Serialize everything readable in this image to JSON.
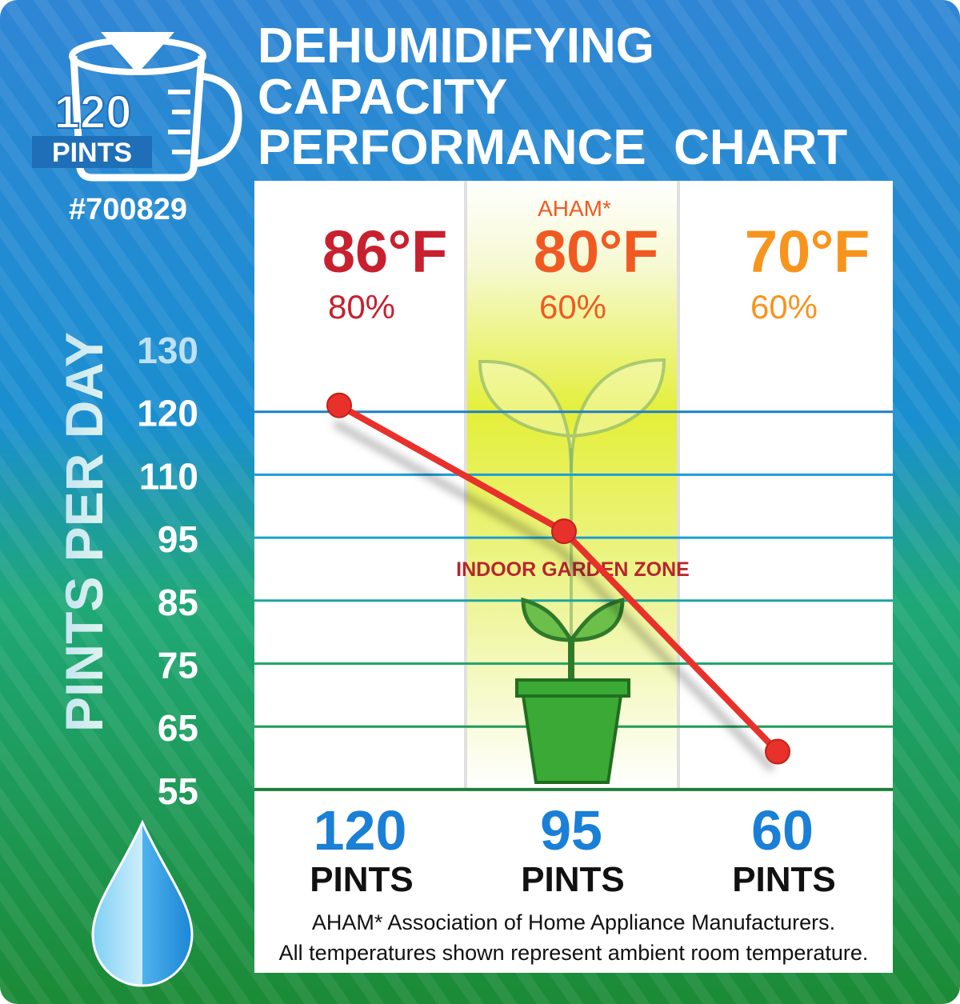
{
  "badge": {
    "capacity_number": "120",
    "capacity_unit": "PINTS",
    "model": "#700829"
  },
  "title_lines": [
    "DEHUMIDIFYING",
    "CAPACITY",
    "PERFORMANCE  CHART"
  ],
  "ylabel": {
    "part1": "PINTS ",
    "part2": "PER ",
    "part3": "DAY"
  },
  "zone_label": "INDOOR GARDEN ZONE",
  "footnote_lines": [
    "AHAM* Association of Home Appliance Manufacturers.",
    "All temperatures shown represent ambient room temperature."
  ],
  "colors": {
    "line": "#e8312a",
    "blue_value": "#1a7fd6",
    "temp_86": "#c8202e",
    "temp_80": "#f05a22",
    "temp_70": "#f7941d",
    "highlight": "#e4ef3a",
    "pot": "#3aa935"
  },
  "icons": [
    "measuring-cup-icon",
    "water-drop-icon",
    "plant-pot-icon",
    "leaf-outline-icon"
  ],
  "chart_data": {
    "type": "line",
    "title": "DEHUMIDIFYING CAPACITY PERFORMANCE CHART",
    "ylabel": "PINTS PER DAY",
    "yticks": [
      55,
      65,
      75,
      85,
      95,
      110,
      120,
      130
    ],
    "categories": [
      {
        "note": "",
        "temp": "86",
        "deg": "°F",
        "humidity": "80%",
        "pints": "120",
        "pints_unit": "PINTS"
      },
      {
        "note": "AHAM*",
        "temp": "80",
        "deg": "°F",
        "humidity": "60%",
        "pints": "95",
        "pints_unit": "PINTS"
      },
      {
        "note": "",
        "temp": "70",
        "deg": "°F",
        "humidity": "60%",
        "pints": "60",
        "pints_unit": "PINTS"
      }
    ],
    "series": [
      {
        "values": [
          120,
          95,
          60
        ]
      }
    ],
    "highlighted_category": 1,
    "grid": true
  }
}
